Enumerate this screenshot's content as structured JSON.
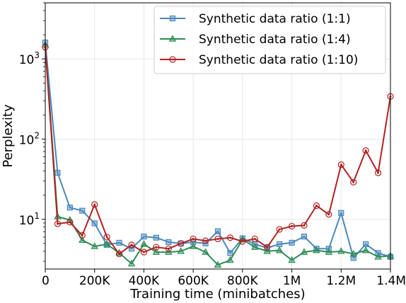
{
  "chart_data": {
    "type": "line",
    "title": "",
    "xlabel": "Training time (minibatches)",
    "ylabel": "Perplexity",
    "x_scale": "linear",
    "y_scale": "log",
    "xlim": [
      0,
      1400000
    ],
    "ylim": [
      2.4,
      5000
    ],
    "grid": true,
    "legend_position": "top-right",
    "x_ticks": [
      {
        "value": 0,
        "label": "0"
      },
      {
        "value": 200000,
        "label": "200K"
      },
      {
        "value": 400000,
        "label": "400K"
      },
      {
        "value": 600000,
        "label": "600K"
      },
      {
        "value": 800000,
        "label": "800K"
      },
      {
        "value": 1000000,
        "label": "1M"
      },
      {
        "value": 1200000,
        "label": "1.2M"
      },
      {
        "value": 1400000,
        "label": "1.4M"
      }
    ],
    "y_ticks": [
      {
        "value": 10,
        "label": "10",
        "exp": "1"
      },
      {
        "value": 100,
        "label": "10",
        "exp": "2"
      },
      {
        "value": 1000,
        "label": "10",
        "exp": "3"
      }
    ],
    "x": [
      0,
      50000,
      100000,
      150000,
      200000,
      250000,
      300000,
      350000,
      400000,
      450000,
      500000,
      550000,
      600000,
      650000,
      700000,
      750000,
      800000,
      850000,
      900000,
      950000,
      1000000,
      1050000,
      1100000,
      1150000,
      1200000,
      1250000,
      1300000,
      1350000,
      1400000
    ],
    "series": [
      {
        "name": "Synthetic data ratio (1:1)",
        "color": "#4a88bd",
        "marker": "square",
        "values": [
          1600,
          38,
          14,
          12.8,
          8.9,
          4.8,
          5.1,
          4.3,
          6.1,
          5.9,
          5.2,
          5.0,
          5.2,
          5.0,
          7.1,
          3.8,
          5.8,
          4.9,
          4.4,
          4.9,
          5.1,
          6.1,
          4.3,
          4.3,
          12.0,
          3.3,
          4.9,
          3.8,
          3.4
        ]
      },
      {
        "name": "Synthetic data ratio (1:4)",
        "color": "#2e8b57",
        "marker": "triangle",
        "values": [
          1500,
          10.8,
          9.8,
          5.5,
          4.6,
          4.9,
          3.8,
          2.8,
          4.9,
          3.9,
          3.9,
          4.0,
          4.6,
          3.9,
          2.7,
          3.1,
          5.6,
          4.5,
          4.0,
          4.1,
          3.1,
          3.9,
          4.1,
          3.9,
          4.0,
          3.7,
          4.1,
          3.4,
          3.5
        ]
      },
      {
        "name": "Synthetic data ratio (1:10)",
        "color": "#b22222",
        "marker": "circle",
        "values": [
          1400,
          8.8,
          9.2,
          6.3,
          15.3,
          6.0,
          3.7,
          4.8,
          3.9,
          4.5,
          4.3,
          5.0,
          5.7,
          5.4,
          5.7,
          5.9,
          5.3,
          5.7,
          4.5,
          7.5,
          8.2,
          8.4,
          14.8,
          11.5,
          48,
          29,
          72,
          38,
          340
        ]
      }
    ]
  }
}
